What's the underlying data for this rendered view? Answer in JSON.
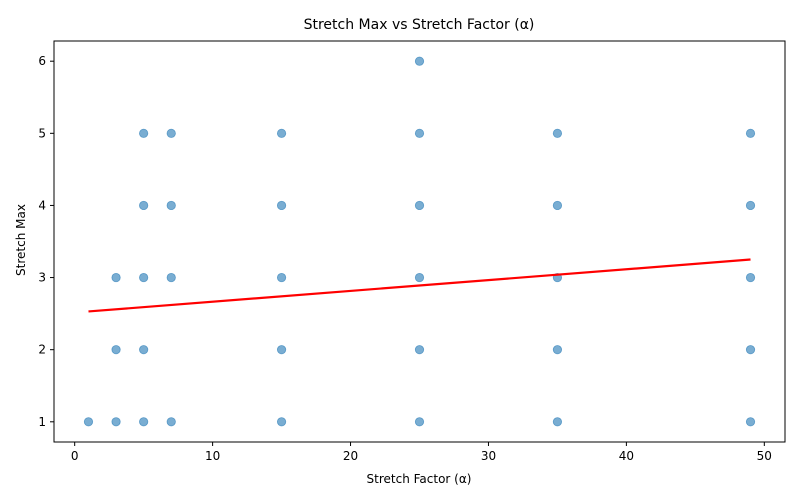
{
  "chart_data": {
    "type": "scatter",
    "title": "Stretch Max vs Stretch Factor (α)",
    "xlabel": "Stretch Factor (α)",
    "ylabel": "Stretch Max",
    "xlim": [
      -1.5,
      51.5
    ],
    "ylim": [
      0.72,
      6.28
    ],
    "xticks": [
      0,
      10,
      20,
      30,
      40,
      50
    ],
    "yticks": [
      1,
      2,
      3,
      4,
      5,
      6
    ],
    "grid": false,
    "legend": "none",
    "point_color": "#1f77b4",
    "line_color": "#ff0000",
    "series": [
      {
        "kind": "points",
        "points": [
          {
            "x": 1,
            "y": 1
          },
          {
            "x": 3,
            "y": 1
          },
          {
            "x": 3,
            "y": 2
          },
          {
            "x": 3,
            "y": 3
          },
          {
            "x": 5,
            "y": 1
          },
          {
            "x": 5,
            "y": 2
          },
          {
            "x": 5,
            "y": 3
          },
          {
            "x": 5,
            "y": 4
          },
          {
            "x": 5,
            "y": 5
          },
          {
            "x": 7,
            "y": 1
          },
          {
            "x": 7,
            "y": 3
          },
          {
            "x": 7,
            "y": 4
          },
          {
            "x": 7,
            "y": 5
          },
          {
            "x": 15,
            "y": 1
          },
          {
            "x": 15,
            "y": 2
          },
          {
            "x": 15,
            "y": 3
          },
          {
            "x": 15,
            "y": 4
          },
          {
            "x": 15,
            "y": 5
          },
          {
            "x": 25,
            "y": 1
          },
          {
            "x": 25,
            "y": 2
          },
          {
            "x": 25,
            "y": 3
          },
          {
            "x": 25,
            "y": 4
          },
          {
            "x": 25,
            "y": 5
          },
          {
            "x": 25,
            "y": 6
          },
          {
            "x": 35,
            "y": 1
          },
          {
            "x": 35,
            "y": 2
          },
          {
            "x": 35,
            "y": 3
          },
          {
            "x": 35,
            "y": 4
          },
          {
            "x": 35,
            "y": 5
          },
          {
            "x": 49,
            "y": 1
          },
          {
            "x": 49,
            "y": 2
          },
          {
            "x": 49,
            "y": 3
          },
          {
            "x": 49,
            "y": 4
          },
          {
            "x": 49,
            "y": 5
          }
        ]
      },
      {
        "kind": "trend-line",
        "x": [
          1,
          49
        ],
        "y": [
          2.53,
          3.25
        ]
      }
    ]
  }
}
